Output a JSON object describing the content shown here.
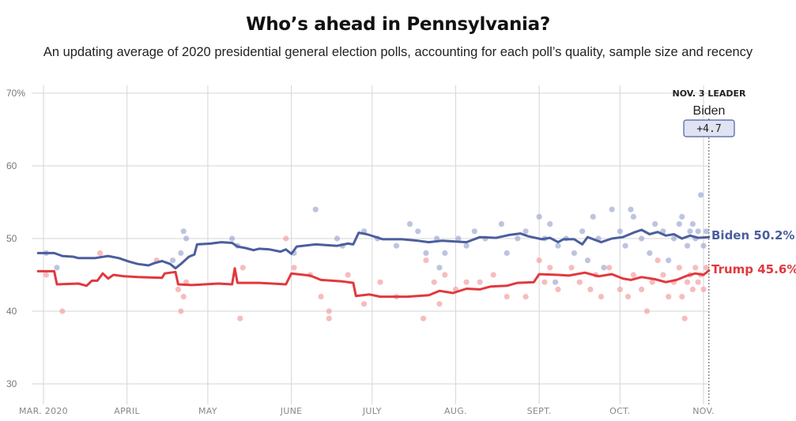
{
  "header": {
    "title": "Who’s ahead in Pennsylvania?",
    "subtitle": "An updating average of 2020 presidential general election polls, accounting for each poll’s quality, sample size and recency"
  },
  "leader": {
    "heading": "NOV. 3 LEADER",
    "name": "Biden",
    "margin": "+4.7"
  },
  "colors": {
    "biden": "#4b5e9e",
    "trump": "#e0393e",
    "biden_poll": "#9aa4cf",
    "trump_poll": "#f3a0a2",
    "grid": "#d6d6d6"
  },
  "chart_data": {
    "type": "line",
    "title": "Who’s ahead in Pennsylvania?",
    "ylabel": "",
    "xlabel": "",
    "ylim": [
      28,
      72
    ],
    "y_ticks": [
      30,
      40,
      50,
      60,
      70
    ],
    "y_tick_labels": [
      "30",
      "40",
      "50",
      "60",
      "70%"
    ],
    "x_ticks": [
      {
        "date": "2020-03-01",
        "label": "MAR. 2020"
      },
      {
        "date": "2020-04-01",
        "label": "APRIL"
      },
      {
        "date": "2020-05-01",
        "label": "MAY"
      },
      {
        "date": "2020-06-01",
        "label": "JUNE"
      },
      {
        "date": "2020-07-01",
        "label": "JULY"
      },
      {
        "date": "2020-08-01",
        "label": "AUG."
      },
      {
        "date": "2020-09-01",
        "label": "SEPT."
      },
      {
        "date": "2020-10-01",
        "label": "OCT."
      },
      {
        "date": "2020-11-01",
        "label": "NOV."
      }
    ],
    "election_date": "2020-11-03",
    "grid": true,
    "series": [
      {
        "name": "Biden",
        "end_label": "Biden 50.2%",
        "color": "#4b5e9e",
        "points": [
          [
            "2020-02-28",
            48.0
          ],
          [
            "2020-03-05",
            48.0
          ],
          [
            "2020-03-08",
            47.6
          ],
          [
            "2020-03-12",
            47.5
          ],
          [
            "2020-03-14",
            47.3
          ],
          [
            "2020-03-20",
            47.3
          ],
          [
            "2020-03-25",
            47.6
          ],
          [
            "2020-03-29",
            47.3
          ],
          [
            "2020-04-02",
            46.8
          ],
          [
            "2020-04-05",
            46.5
          ],
          [
            "2020-04-09",
            46.3
          ],
          [
            "2020-04-11",
            46.6
          ],
          [
            "2020-04-14",
            46.9
          ],
          [
            "2020-04-17",
            46.5
          ],
          [
            "2020-04-19",
            45.9
          ],
          [
            "2020-04-21",
            46.5
          ],
          [
            "2020-04-24",
            47.5
          ],
          [
            "2020-04-26",
            47.8
          ],
          [
            "2020-04-27",
            49.2
          ],
          [
            "2020-05-02",
            49.3
          ],
          [
            "2020-05-06",
            49.5
          ],
          [
            "2020-05-10",
            49.4
          ],
          [
            "2020-05-12",
            48.9
          ],
          [
            "2020-05-15",
            48.7
          ],
          [
            "2020-05-18",
            48.4
          ],
          [
            "2020-05-20",
            48.6
          ],
          [
            "2020-05-24",
            48.5
          ],
          [
            "2020-05-28",
            48.2
          ],
          [
            "2020-05-30",
            48.5
          ],
          [
            "2020-06-01",
            47.9
          ],
          [
            "2020-06-03",
            48.9
          ],
          [
            "2020-06-10",
            49.2
          ],
          [
            "2020-06-18",
            49.0
          ],
          [
            "2020-06-22",
            49.3
          ],
          [
            "2020-06-24",
            49.2
          ],
          [
            "2020-06-26",
            50.8
          ],
          [
            "2020-06-29",
            50.6
          ],
          [
            "2020-07-05",
            49.9
          ],
          [
            "2020-07-12",
            49.9
          ],
          [
            "2020-07-18",
            49.7
          ],
          [
            "2020-07-22",
            49.5
          ],
          [
            "2020-07-27",
            49.7
          ],
          [
            "2020-08-05",
            49.5
          ],
          [
            "2020-08-10",
            50.2
          ],
          [
            "2020-08-16",
            50.1
          ],
          [
            "2020-08-21",
            50.5
          ],
          [
            "2020-08-25",
            50.7
          ],
          [
            "2020-08-28",
            50.3
          ],
          [
            "2020-09-02",
            49.9
          ],
          [
            "2020-09-05",
            50.1
          ],
          [
            "2020-09-08",
            49.5
          ],
          [
            "2020-09-10",
            49.9
          ],
          [
            "2020-09-14",
            49.9
          ],
          [
            "2020-09-17",
            49.2
          ],
          [
            "2020-09-19",
            50.2
          ],
          [
            "2020-09-24",
            49.5
          ],
          [
            "2020-09-28",
            50.0
          ],
          [
            "2020-10-02",
            50.2
          ],
          [
            "2020-10-06",
            50.8
          ],
          [
            "2020-10-09",
            51.2
          ],
          [
            "2020-10-12",
            50.6
          ],
          [
            "2020-10-15",
            50.9
          ],
          [
            "2020-10-18",
            50.4
          ],
          [
            "2020-10-21",
            50.6
          ],
          [
            "2020-10-24",
            50.0
          ],
          [
            "2020-10-27",
            50.4
          ],
          [
            "2020-10-30",
            50.1
          ],
          [
            "2020-11-03",
            50.2
          ]
        ]
      },
      {
        "name": "Trump",
        "end_label": "Trump 45.6%",
        "color": "#e0393e",
        "points": [
          [
            "2020-02-28",
            45.5
          ],
          [
            "2020-03-05",
            45.5
          ],
          [
            "2020-03-06",
            43.7
          ],
          [
            "2020-03-14",
            43.8
          ],
          [
            "2020-03-17",
            43.5
          ],
          [
            "2020-03-19",
            44.2
          ],
          [
            "2020-03-21",
            44.2
          ],
          [
            "2020-03-23",
            45.2
          ],
          [
            "2020-03-25",
            44.5
          ],
          [
            "2020-03-27",
            45.0
          ],
          [
            "2020-03-31",
            44.8
          ],
          [
            "2020-04-05",
            44.7
          ],
          [
            "2020-04-14",
            44.6
          ],
          [
            "2020-04-15",
            45.2
          ],
          [
            "2020-04-19",
            45.4
          ],
          [
            "2020-04-20",
            43.7
          ],
          [
            "2020-04-25",
            43.6
          ],
          [
            "2020-05-05",
            43.8
          ],
          [
            "2020-05-10",
            43.7
          ],
          [
            "2020-05-11",
            45.9
          ],
          [
            "2020-05-12",
            43.9
          ],
          [
            "2020-05-20",
            43.9
          ],
          [
            "2020-05-25",
            43.8
          ],
          [
            "2020-05-30",
            43.7
          ],
          [
            "2020-06-01",
            45.2
          ],
          [
            "2020-06-08",
            44.9
          ],
          [
            "2020-06-12",
            44.3
          ],
          [
            "2020-06-20",
            44.1
          ],
          [
            "2020-06-24",
            43.9
          ],
          [
            "2020-06-25",
            42.1
          ],
          [
            "2020-06-30",
            42.3
          ],
          [
            "2020-07-04",
            42.0
          ],
          [
            "2020-07-14",
            42.0
          ],
          [
            "2020-07-22",
            42.2
          ],
          [
            "2020-07-26",
            42.8
          ],
          [
            "2020-07-31",
            42.5
          ],
          [
            "2020-08-05",
            43.1
          ],
          [
            "2020-08-10",
            43.0
          ],
          [
            "2020-08-14",
            43.4
          ],
          [
            "2020-08-20",
            43.5
          ],
          [
            "2020-08-24",
            43.9
          ],
          [
            "2020-08-30",
            44.0
          ],
          [
            "2020-09-01",
            45.1
          ],
          [
            "2020-09-08",
            45.0
          ],
          [
            "2020-09-12",
            44.9
          ],
          [
            "2020-09-18",
            45.3
          ],
          [
            "2020-09-23",
            44.8
          ],
          [
            "2020-09-28",
            45.1
          ],
          [
            "2020-10-02",
            44.5
          ],
          [
            "2020-10-05",
            44.3
          ],
          [
            "2020-10-09",
            44.7
          ],
          [
            "2020-10-14",
            44.4
          ],
          [
            "2020-10-18",
            44.0
          ],
          [
            "2020-10-22",
            44.3
          ],
          [
            "2020-10-26",
            44.9
          ],
          [
            "2020-10-29",
            45.2
          ],
          [
            "2020-11-01",
            45.0
          ],
          [
            "2020-11-03",
            45.6
          ]
        ]
      }
    ],
    "polls": {
      "biden": [
        [
          "2020-03-02",
          48
        ],
        [
          "2020-03-06",
          46
        ],
        [
          "2020-04-22",
          51
        ],
        [
          "2020-04-23",
          50
        ],
        [
          "2020-04-18",
          47
        ],
        [
          "2020-04-21",
          48
        ],
        [
          "2020-05-10",
          50
        ],
        [
          "2020-05-12",
          49
        ],
        [
          "2020-06-02",
          48
        ],
        [
          "2020-06-10",
          54
        ],
        [
          "2020-06-18",
          50
        ],
        [
          "2020-06-20",
          49
        ],
        [
          "2020-06-28",
          51
        ],
        [
          "2020-07-03",
          50
        ],
        [
          "2020-07-10",
          49
        ],
        [
          "2020-07-15",
          52
        ],
        [
          "2020-07-18",
          51
        ],
        [
          "2020-07-21",
          48
        ],
        [
          "2020-07-25",
          50
        ],
        [
          "2020-07-26",
          46
        ],
        [
          "2020-07-28",
          48
        ],
        [
          "2020-08-02",
          50
        ],
        [
          "2020-08-05",
          49
        ],
        [
          "2020-08-08",
          51
        ],
        [
          "2020-08-12",
          50
        ],
        [
          "2020-08-18",
          52
        ],
        [
          "2020-08-20",
          48
        ],
        [
          "2020-08-24",
          50
        ],
        [
          "2020-08-27",
          51
        ],
        [
          "2020-09-01",
          53
        ],
        [
          "2020-09-03",
          50
        ],
        [
          "2020-09-05",
          52
        ],
        [
          "2020-09-07",
          44
        ],
        [
          "2020-09-08",
          49
        ],
        [
          "2020-09-11",
          50
        ],
        [
          "2020-09-14",
          48
        ],
        [
          "2020-09-17",
          51
        ],
        [
          "2020-09-19",
          47
        ],
        [
          "2020-09-21",
          53
        ],
        [
          "2020-09-23",
          50
        ],
        [
          "2020-09-25",
          46
        ],
        [
          "2020-09-28",
          54
        ],
        [
          "2020-10-01",
          51
        ],
        [
          "2020-10-03",
          49
        ],
        [
          "2020-10-05",
          54
        ],
        [
          "2020-10-06",
          53
        ],
        [
          "2020-10-09",
          50
        ],
        [
          "2020-10-12",
          48
        ],
        [
          "2020-10-14",
          52
        ],
        [
          "2020-10-17",
          51
        ],
        [
          "2020-10-19",
          47
        ],
        [
          "2020-10-21",
          50
        ],
        [
          "2020-10-23",
          52
        ],
        [
          "2020-10-24",
          53
        ],
        [
          "2020-10-26",
          49
        ],
        [
          "2020-10-27",
          51
        ],
        [
          "2020-10-28",
          52
        ],
        [
          "2020-10-29",
          50
        ],
        [
          "2020-10-30",
          51
        ],
        [
          "2020-10-31",
          56
        ],
        [
          "2020-11-01",
          49
        ],
        [
          "2020-11-02",
          51
        ]
      ],
      "trump": [
        [
          "2020-03-02",
          45
        ],
        [
          "2020-03-08",
          40
        ],
        [
          "2020-03-22",
          48
        ],
        [
          "2020-04-12",
          47
        ],
        [
          "2020-04-20",
          43
        ],
        [
          "2020-04-21",
          40
        ],
        [
          "2020-04-22",
          42
        ],
        [
          "2020-04-23",
          44
        ],
        [
          "2020-05-13",
          39
        ],
        [
          "2020-05-14",
          46
        ],
        [
          "2020-05-30",
          50
        ],
        [
          "2020-06-02",
          46
        ],
        [
          "2020-06-08",
          45
        ],
        [
          "2020-06-12",
          42
        ],
        [
          "2020-06-15",
          39
        ],
        [
          "2020-06-15",
          40
        ],
        [
          "2020-06-22",
          45
        ],
        [
          "2020-06-28",
          41
        ],
        [
          "2020-07-04",
          44
        ],
        [
          "2020-07-10",
          42
        ],
        [
          "2020-07-20",
          39
        ],
        [
          "2020-07-21",
          47
        ],
        [
          "2020-07-24",
          44
        ],
        [
          "2020-07-26",
          41
        ],
        [
          "2020-07-28",
          45
        ],
        [
          "2020-08-01",
          43
        ],
        [
          "2020-08-05",
          44
        ],
        [
          "2020-08-10",
          44
        ],
        [
          "2020-08-15",
          45
        ],
        [
          "2020-08-20",
          42
        ],
        [
          "2020-08-27",
          42
        ],
        [
          "2020-09-01",
          47
        ],
        [
          "2020-09-03",
          44
        ],
        [
          "2020-09-05",
          46
        ],
        [
          "2020-09-08",
          43
        ],
        [
          "2020-09-13",
          46
        ],
        [
          "2020-09-16",
          44
        ],
        [
          "2020-09-20",
          43
        ],
        [
          "2020-09-22",
          45
        ],
        [
          "2020-09-24",
          42
        ],
        [
          "2020-09-27",
          46
        ],
        [
          "2020-10-01",
          43
        ],
        [
          "2020-10-04",
          42
        ],
        [
          "2020-10-06",
          45
        ],
        [
          "2020-10-09",
          43
        ],
        [
          "2020-10-11",
          40
        ],
        [
          "2020-10-13",
          44
        ],
        [
          "2020-10-15",
          47
        ],
        [
          "2020-10-17",
          45
        ],
        [
          "2020-10-19",
          42
        ],
        [
          "2020-10-21",
          44
        ],
        [
          "2020-10-23",
          46
        ],
        [
          "2020-10-24",
          42
        ],
        [
          "2020-10-25",
          39
        ],
        [
          "2020-10-26",
          44
        ],
        [
          "2020-10-27",
          45
        ],
        [
          "2020-10-28",
          43
        ],
        [
          "2020-10-29",
          46
        ],
        [
          "2020-10-30",
          44
        ],
        [
          "2020-10-31",
          45
        ],
        [
          "2020-11-01",
          43
        ],
        [
          "2020-11-02",
          46
        ]
      ]
    }
  }
}
